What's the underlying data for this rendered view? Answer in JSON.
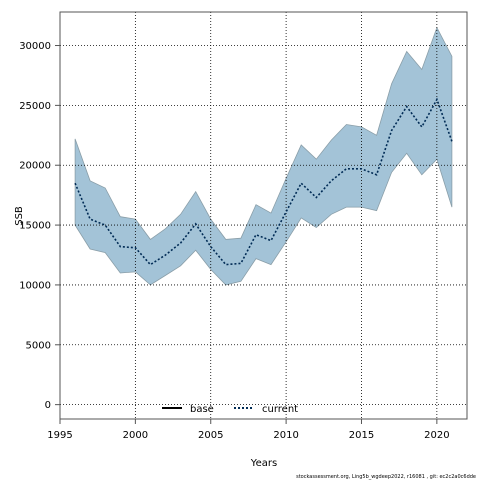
{
  "colors": {
    "band_fill": "#a3c3d7",
    "band_edge": "#8a9ea8",
    "line": "#002b55",
    "grid": "#000000",
    "frame": "#555555"
  },
  "chart_data": {
    "type": "line",
    "xlabel": "Years",
    "ylabel": "SSB",
    "xlim": [
      1995,
      2022
    ],
    "ylim": [
      -1200,
      32800
    ],
    "x_ticks": [
      1995,
      2000,
      2005,
      2010,
      2015,
      2020
    ],
    "y_ticks": [
      0,
      5000,
      10000,
      15000,
      20000,
      25000,
      30000
    ],
    "grid": true,
    "legend": {
      "placement": "bottom-center",
      "entries": [
        {
          "label": "base",
          "style": "solid"
        },
        {
          "label": "current",
          "style": "dotted"
        }
      ]
    },
    "x": [
      1996,
      1997,
      1998,
      1999,
      2000,
      2001,
      2002,
      2003,
      2004,
      2005,
      2006,
      2007,
      2008,
      2009,
      2010,
      2011,
      2012,
      2013,
      2014,
      2015,
      2016,
      2017,
      2018,
      2019,
      2020,
      2021
    ],
    "series": [
      {
        "name": "current",
        "values": [
          18500,
          15500,
          15000,
          13200,
          13100,
          11700,
          12500,
          13500,
          15100,
          13200,
          11700,
          11800,
          14200,
          13700,
          16100,
          18500,
          17300,
          18700,
          19700,
          19700,
          19200,
          22900,
          24900,
          23200,
          25500,
          22000
        ]
      }
    ],
    "interval": {
      "lower": [
        15000,
        13000,
        12700,
        11000,
        11100,
        10000,
        10800,
        11600,
        12900,
        11300,
        10000,
        10300,
        12200,
        11700,
        13600,
        15600,
        14800,
        15900,
        16500,
        16500,
        16200,
        19400,
        21000,
        19200,
        20500,
        16500
      ],
      "upper": [
        22200,
        18700,
        18100,
        15700,
        15500,
        13800,
        14700,
        15900,
        17800,
        15500,
        13800,
        13900,
        16700,
        16000,
        18900,
        21700,
        20500,
        22100,
        23400,
        23200,
        22500,
        26800,
        29500,
        28000,
        31500,
        29100
      ]
    },
    "footer": "stockassessment.org, Ling5b_wgdeep2022, r16081 , git: ec2c2a0c6dde"
  }
}
